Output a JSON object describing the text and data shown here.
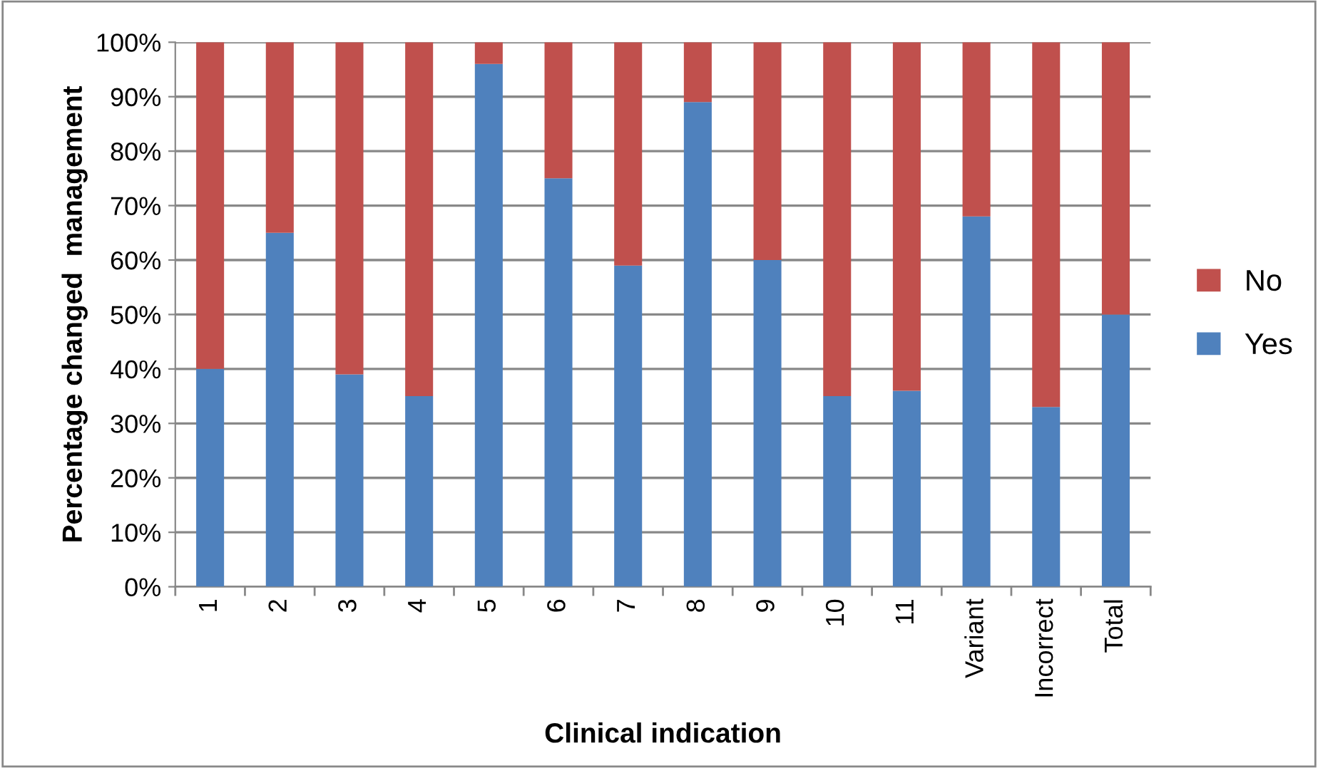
{
  "chart_data": {
    "type": "bar",
    "stacked": true,
    "xlabel": "Clinical indication",
    "ylabel": "Percentage changed  management",
    "categories": [
      "1",
      "2",
      "3",
      "4",
      "5",
      "6",
      "7",
      "8",
      "9",
      "10",
      "11",
      "Variant",
      "Incorrect",
      "Total"
    ],
    "series": [
      {
        "name": "Yes",
        "color": "#4f81bd",
        "values": [
          40,
          65,
          39,
          35,
          96,
          75,
          59,
          89,
          60,
          35,
          36,
          68,
          33,
          50
        ]
      },
      {
        "name": "No",
        "color": "#c0504d",
        "values": [
          60,
          35,
          61,
          65,
          4,
          25,
          41,
          11,
          40,
          65,
          64,
          32,
          67,
          50
        ]
      }
    ],
    "ylim": [
      0,
      100
    ],
    "yticks": [
      {
        "value": 0,
        "label": "0%"
      },
      {
        "value": 10,
        "label": "10%"
      },
      {
        "value": 20,
        "label": "20%"
      },
      {
        "value": 30,
        "label": "30%"
      },
      {
        "value": 40,
        "label": "40%"
      },
      {
        "value": 50,
        "label": "50%"
      },
      {
        "value": 60,
        "label": "60%"
      },
      {
        "value": 70,
        "label": "70%"
      },
      {
        "value": 80,
        "label": "80%"
      },
      {
        "value": 90,
        "label": "90%"
      },
      {
        "value": 100,
        "label": "100%"
      }
    ],
    "grid": "y",
    "legend": "right"
  }
}
